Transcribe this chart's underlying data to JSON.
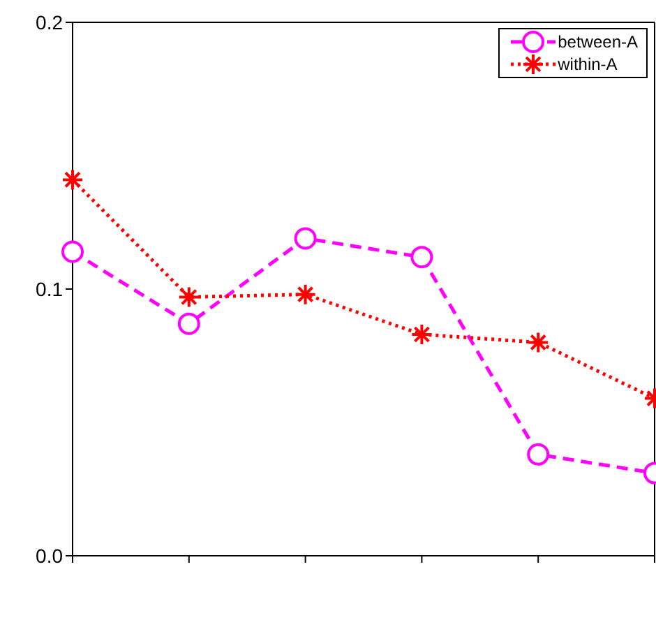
{
  "chart_data": {
    "type": "line",
    "categories": [
      null,
      null,
      null,
      null,
      null,
      null
    ],
    "series": [
      {
        "name": "between-A",
        "color": "#ff00ff",
        "values": [
          0.114,
          0.087,
          0.119,
          0.112,
          0.038,
          0.031
        ],
        "marker": "circle",
        "line_style": "dashed"
      },
      {
        "name": "within-A",
        "color": "#ff0000",
        "values": [
          0.141,
          0.097,
          0.098,
          0.083,
          0.08,
          0.059
        ],
        "marker": "cross",
        "line_style": "dotted"
      }
    ],
    "ylim": [
      0,
      0.2
    ],
    "yticks": [
      {
        "value": 0,
        "label": "0.0"
      },
      0.1,
      0.2
    ],
    "legend": "top right"
  }
}
